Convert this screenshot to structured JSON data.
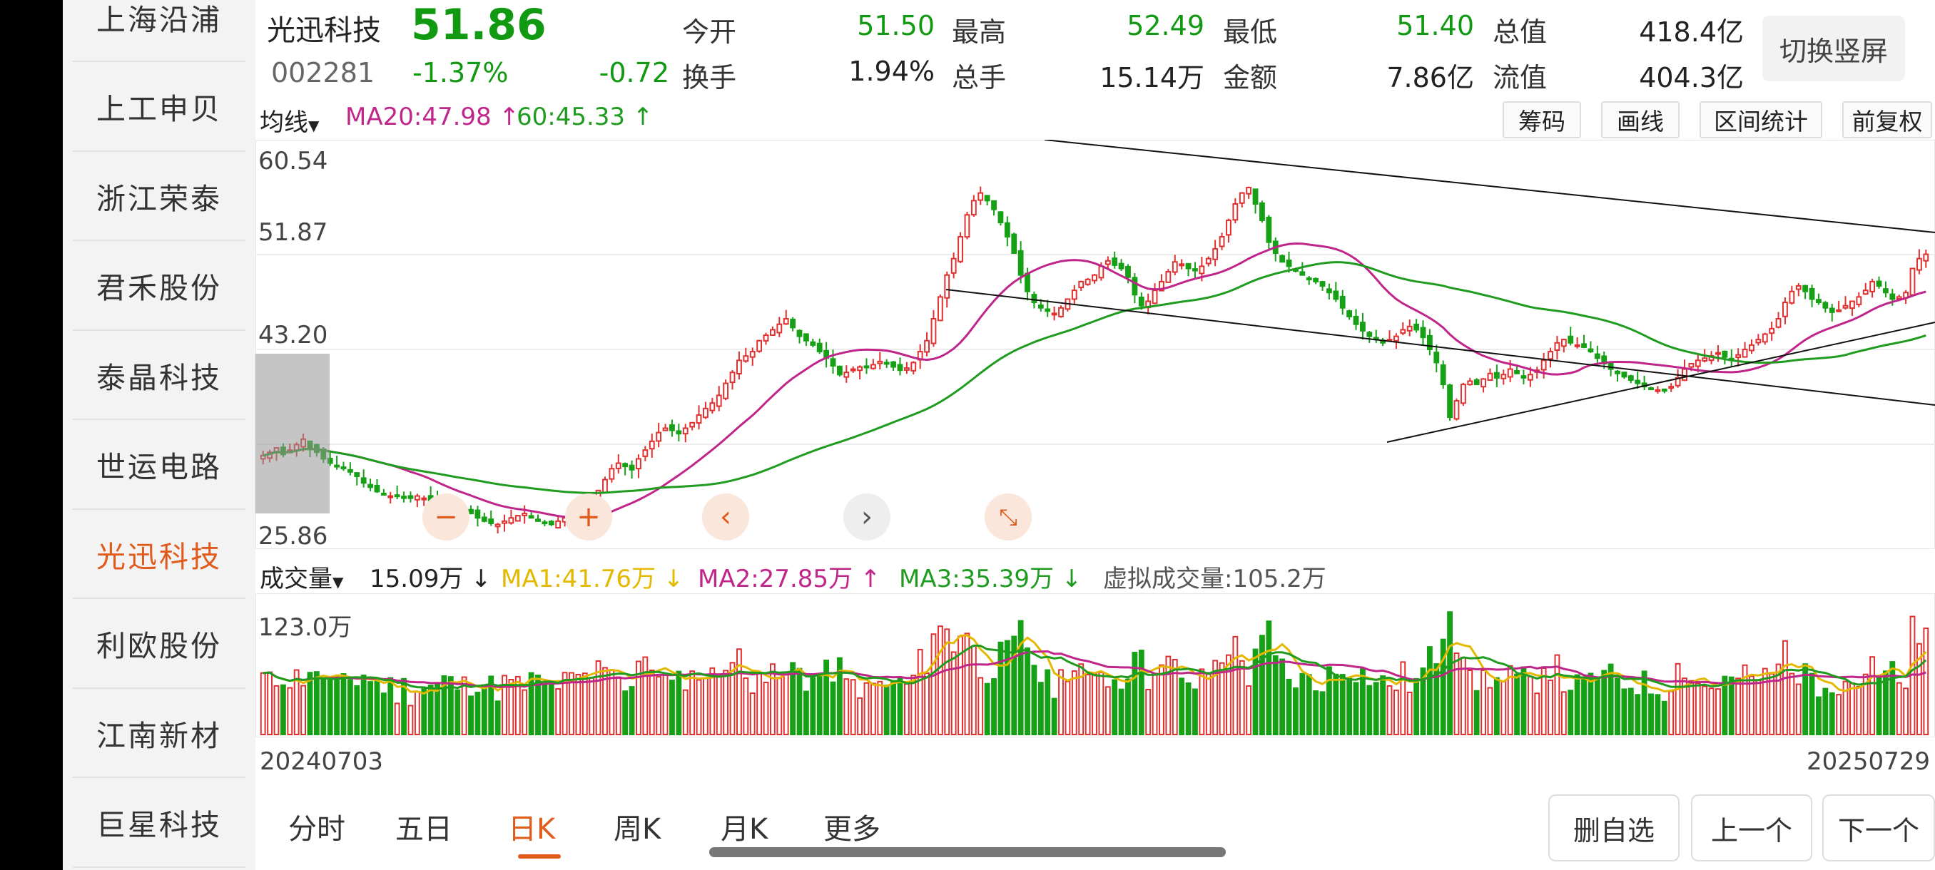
{
  "sidebar": {
    "items": [
      {
        "label": "上海沿浦",
        "active": false
      },
      {
        "label": "上工申贝",
        "active": false
      },
      {
        "label": "浙江荣泰",
        "active": false
      },
      {
        "label": "君禾股份",
        "active": false
      },
      {
        "label": "泰晶科技",
        "active": false
      },
      {
        "label": "世运电路",
        "active": false
      },
      {
        "label": "光迅科技",
        "active": true
      },
      {
        "label": "利欧股份",
        "active": false
      },
      {
        "label": "江南新材",
        "active": false
      },
      {
        "label": "巨星科技",
        "active": false
      }
    ]
  },
  "header": {
    "name": "光迅科技",
    "price": "51.86",
    "code": "002281",
    "change_pct": "-1.37%",
    "change": "-0.72",
    "stats": [
      {
        "label": "今开",
        "value": "51.50",
        "color": "green"
      },
      {
        "label": "最高",
        "value": "52.49",
        "color": "green"
      },
      {
        "label": "最低",
        "value": "51.40",
        "color": "green"
      },
      {
        "label": "总值",
        "value": "418.4亿",
        "color": "dark"
      },
      {
        "label": "换手",
        "value": "1.94%",
        "color": "dark"
      },
      {
        "label": "总手",
        "value": "15.14万",
        "color": "dark"
      },
      {
        "label": "金额",
        "value": "7.86亿",
        "color": "dark"
      },
      {
        "label": "流值",
        "value": "404.3亿",
        "color": "dark"
      }
    ],
    "switch_label": "切换竖屏"
  },
  "toolbar": {
    "ma_select": "均线",
    "ma20": "MA20:47.98",
    "ma60": "60:45.33",
    "buttons": [
      "筹码",
      "画线",
      "区间统计",
      "前复权"
    ]
  },
  "volume_bar": {
    "select": "成交量",
    "current": "15.09万",
    "ma1": "MA1:41.76万",
    "ma2": "MA2:27.85万",
    "ma3": "MA3:35.39万",
    "virtual": "虚拟成交量:105.2万"
  },
  "chart_data": [
    {
      "type": "candlestick",
      "y_ticks": [
        "60.54",
        "51.87",
        "43.20",
        "25.86"
      ],
      "ylim": [
        25.86,
        60.54
      ],
      "x_start": "20240703",
      "x_end": "20250729",
      "close": [
        33.5,
        33.8,
        34.2,
        33.6,
        34.0,
        34.5,
        35.0,
        34.2,
        33.8,
        33.2,
        32.8,
        32.6,
        32.4,
        32.0,
        31.6,
        31.0,
        30.6,
        30.2,
        30.0,
        29.8,
        29.8,
        29.6,
        29.6,
        29.8,
        29.6,
        29.4,
        29.2,
        28.8,
        28.5,
        28.3,
        28.5,
        28.2,
        27.8,
        27.5,
        27.3,
        27.2,
        27.5,
        27.8,
        28.0,
        28.2,
        27.8,
        27.5,
        27.3,
        27.2,
        27.5,
        27.8,
        28.2,
        28.5,
        29.0,
        29.5,
        30.3,
        31.3,
        32.3,
        32.8,
        32.5,
        32.2,
        33.2,
        34.0,
        34.8,
        35.6,
        36.0,
        35.8,
        35.5,
        36.0,
        36.5,
        37.2,
        37.8,
        38.3,
        39.0,
        40.1,
        41.1,
        42.2,
        42.6,
        43.0,
        44.0,
        44.5,
        45.0,
        45.5,
        46.0,
        45.2,
        44.4,
        44.0,
        43.6,
        43.0,
        42.4,
        41.7,
        40.9,
        41.1,
        41.4,
        41.6,
        41.6,
        41.8,
        42.1,
        42.0,
        41.6,
        41.3,
        41.5,
        42.0,
        43.0,
        44.0,
        46.0,
        48.0,
        50.0,
        51.5,
        53.5,
        55.5,
        56.8,
        57.5,
        56.8,
        56.0,
        54.8,
        53.5,
        52.0,
        50.0,
        48.5,
        47.5,
        47.0,
        46.7,
        46.5,
        47.0,
        47.8,
        48.6,
        49.4,
        49.6,
        50.0,
        50.8,
        51.3,
        50.9,
        50.6,
        49.8,
        48.2,
        47.2,
        47.6,
        48.6,
        49.4,
        50.3,
        51.2,
        51.0,
        50.6,
        50.4,
        50.8,
        51.5,
        52.4,
        53.5,
        55.0,
        56.5,
        57.5,
        58.0,
        56.5,
        55.0,
        53.0,
        52.0,
        51.2,
        50.8,
        50.4,
        50.0,
        49.6,
        49.4,
        49.0,
        48.4,
        47.8,
        47.0,
        46.2,
        45.5,
        44.9,
        44.4,
        44.1,
        43.8,
        44.1,
        44.4,
        45.0,
        45.3,
        45.0,
        44.3,
        43.2,
        42.0,
        40.0,
        37.0,
        38.5,
        40.0,
        40.3,
        40.0,
        40.5,
        41.0,
        40.6,
        40.9,
        41.4,
        41.0,
        40.6,
        40.9,
        41.3,
        42.2,
        43.0,
        43.8,
        44.1,
        43.8,
        43.6,
        43.4,
        43.0,
        42.4,
        41.9,
        41.4,
        41.0,
        40.7,
        40.4,
        40.1,
        39.8,
        39.6,
        39.5,
        39.4,
        39.8,
        40.6,
        41.4,
        41.9,
        42.2,
        42.4,
        42.6,
        42.9,
        42.5,
        42.2,
        42.7,
        43.2,
        43.6,
        44.1,
        44.6,
        45.1,
        46.0,
        47.5,
        48.5,
        49.0,
        48.5,
        47.8,
        47.5,
        47.0,
        46.6,
        46.8,
        47.2,
        47.6,
        48.0,
        48.6,
        49.4,
        49.0,
        48.4,
        47.8,
        48.0,
        48.4,
        50.6,
        51.5,
        51.9
      ],
      "ma20_end": 47.98,
      "ma60_end": 45.33
    },
    {
      "type": "bar",
      "title": "成交量",
      "y_tick": "123.0万",
      "ylim": [
        0,
        123.0
      ]
    }
  ]
}
